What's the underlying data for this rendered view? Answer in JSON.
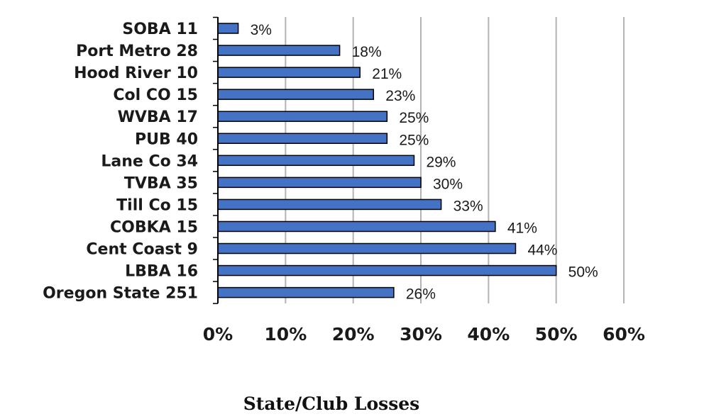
{
  "chart_data": {
    "type": "bar",
    "orientation": "horizontal",
    "title": "State/Club Losses",
    "categories": [
      "SOBA 11",
      "Port Metro 28",
      "Hood River 10",
      "Col  CO 15",
      "WVBA 17",
      "PUB 40",
      "Lane Co 34",
      "TVBA 35",
      "Till Co 15",
      "COBKA 15",
      "Cent Coast 9",
      "LBBA 16",
      "Oregon State 251"
    ],
    "values": [
      3,
      18,
      21,
      23,
      25,
      25,
      29,
      30,
      33,
      41,
      44,
      50,
      26
    ],
    "data_labels": [
      "3%",
      "18%",
      "21%",
      "23%",
      "25%",
      "25%",
      "29%",
      "30%",
      "33%",
      "41%",
      "44%",
      "50%",
      "26%"
    ],
    "xlim": [
      0,
      60
    ],
    "x_ticks": [
      0,
      10,
      20,
      30,
      40,
      50,
      60
    ],
    "x_tick_labels": [
      "0%",
      "10%",
      "20%",
      "30%",
      "40%",
      "50%",
      "60%"
    ],
    "grid": "vertical",
    "bar_color": "#4472c4",
    "bar_edge_color": "#000000",
    "grid_color": "#b3b3b3"
  }
}
